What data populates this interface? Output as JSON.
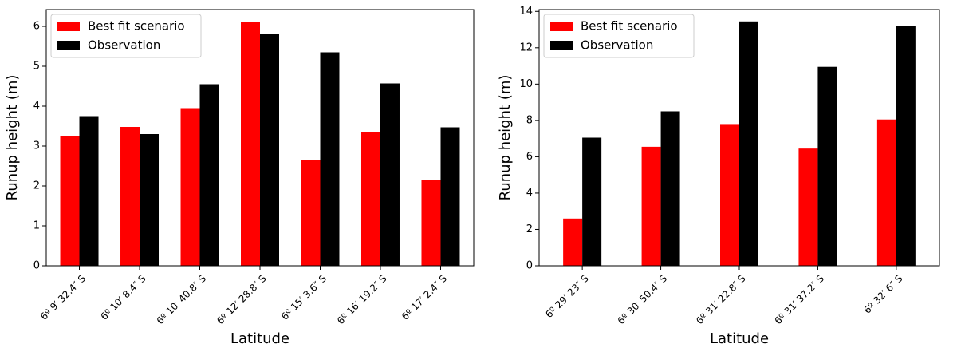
{
  "chart_data": [
    {
      "type": "bar",
      "y_label": "Runup height (m)",
      "x_label": "Latitude",
      "categories": [
        "6º 9′ 32.4″ S",
        "6º 10′ 8.4″ S",
        "6º 10′ 40.8″ S",
        "6º 12′ 28.8″ S",
        "6º 15′ 3.6″ S",
        "6º 16′ 19.2″ S",
        "6º 17′ 2.4″ S"
      ],
      "series": [
        {
          "name": "Best fit scenario",
          "color": "#ff0000",
          "values": [
            3.25,
            3.48,
            3.95,
            6.12,
            2.65,
            3.35,
            2.15
          ]
        },
        {
          "name": "Observation",
          "color": "#000000",
          "values": [
            3.75,
            3.3,
            4.55,
            5.8,
            5.35,
            4.57,
            3.47
          ]
        }
      ],
      "ylim": [
        0,
        6.42
      ],
      "yticks": [
        0,
        1,
        2,
        3,
        4,
        5,
        6
      ],
      "legend": "upper-left"
    },
    {
      "type": "bar",
      "y_label": "Runup height (m)",
      "x_label": "Latitude",
      "categories": [
        "6º 29′ 23″ S",
        "6º 30′ 50.4″ S",
        "6º 31′ 22.8″ S",
        "6º 31′ 37.2″ S",
        "6º 32′ 6″ S"
      ],
      "series": [
        {
          "name": "Best fit scenario",
          "color": "#ff0000",
          "values": [
            2.6,
            6.55,
            7.8,
            6.45,
            8.05
          ]
        },
        {
          "name": "Observation",
          "color": "#000000",
          "values": [
            7.05,
            8.5,
            13.45,
            10.95,
            13.2
          ]
        }
      ],
      "ylim": [
        0,
        14.1
      ],
      "yticks": [
        0,
        2,
        4,
        6,
        8,
        10,
        12,
        14
      ],
      "legend": "upper-left"
    }
  ]
}
